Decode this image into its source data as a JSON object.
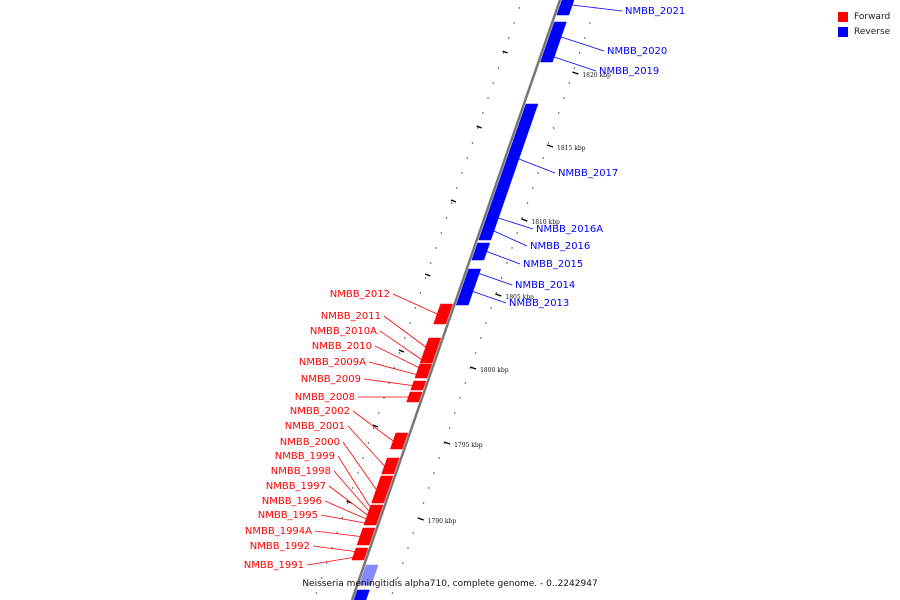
{
  "caption": "Neisseria meningitidis alpha710, complete genome. - 0..2242947",
  "legend": [
    {
      "label": "Forward",
      "color": "#ff0000"
    },
    {
      "label": "Reverse",
      "color": "#0000ff"
    }
  ],
  "colors": {
    "forward": "#ff0000",
    "reverse": "#0000ff",
    "reverse_dim": "#8888ff",
    "backbone": "#777777"
  },
  "ticks": [
    "1790 kbp",
    "1795 kbp",
    "1800 kbp",
    "1805 kbp",
    "1810 kbp",
    "1815 kbp",
    "1820 kbp"
  ],
  "features_reverse": [
    {
      "name": "NMBB_2021"
    },
    {
      "name": "NMBB_2020"
    },
    {
      "name": "NMBB_2019"
    },
    {
      "name": "NMBB_2017"
    },
    {
      "name": "NMBB_2016A"
    },
    {
      "name": "NMBB_2016"
    },
    {
      "name": "NMBB_2015"
    },
    {
      "name": "NMBB_2014"
    },
    {
      "name": "NMBB_2013"
    }
  ],
  "features_forward": [
    {
      "name": "NMBB_2012"
    },
    {
      "name": "NMBB_2011"
    },
    {
      "name": "NMBB_2010A"
    },
    {
      "name": "NMBB_2010"
    },
    {
      "name": "NMBB_2009A"
    },
    {
      "name": "NMBB_2009"
    },
    {
      "name": "NMBB_2008"
    },
    {
      "name": "NMBB_2002"
    },
    {
      "name": "NMBB_2001"
    },
    {
      "name": "NMBB_2000"
    },
    {
      "name": "NMBB_1999"
    },
    {
      "name": "NMBB_1998"
    },
    {
      "name": "NMBB_1997"
    },
    {
      "name": "NMBB_1996"
    },
    {
      "name": "NMBB_1995"
    },
    {
      "name": "NMBB_1994A"
    },
    {
      "name": "NMBB_1992"
    },
    {
      "name": "NMBB_1991"
    }
  ]
}
